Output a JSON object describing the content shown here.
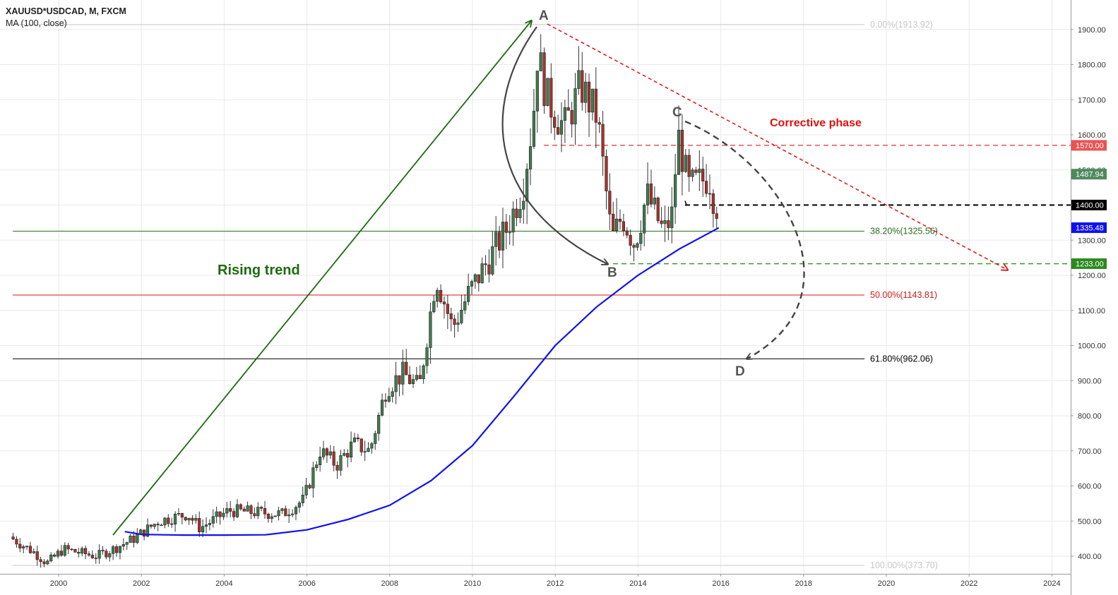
{
  "header": {
    "symbol_line": "XAUUSD*USDCAD, M, FXCM",
    "indicator_line": "MA (100, close)"
  },
  "colors": {
    "up": "#3f7c4f",
    "down": "#a8322b",
    "ma": "#1010ee",
    "grid": "#eaeaea",
    "green_line": "#1e6b10",
    "red_line": "#e01010",
    "price_badge": "#4d8a5c"
  },
  "chart_data": {
    "type": "candlestick",
    "title": "XAUUSD*USDCAD, M, FXCM",
    "x_ticks": [
      "2000",
      "2002",
      "2004",
      "2006",
      "2008",
      "2010",
      "2012",
      "2014",
      "2016",
      "2018",
      "2020",
      "2022",
      "2024"
    ],
    "y_ticks": [
      "400.00",
      "500.00",
      "600.00",
      "700.00",
      "800.00",
      "900.00",
      "1000.00",
      "1100.00",
      "1200.00",
      "1300.00",
      "1400.00",
      "1500.00",
      "1600.00",
      "1700.00",
      "1800.00",
      "1900.00"
    ],
    "xlim": [
      1998.9,
      2024.8
    ],
    "ylim": [
      366,
      1982
    ],
    "grid": true,
    "price_series_anchors": [
      [
        1998.9,
        455
      ],
      [
        1999.5,
        410
      ],
      [
        1999.8,
        380
      ],
      [
        2000.2,
        420
      ],
      [
        2001.0,
        400
      ],
      [
        2001.4,
        420
      ],
      [
        2001.9,
        450
      ],
      [
        2002.5,
        500
      ],
      [
        2003.2,
        520
      ],
      [
        2003.5,
        480
      ],
      [
        2004.2,
        530
      ],
      [
        2004.8,
        525
      ],
      [
        2005.5,
        520
      ],
      [
        2006.0,
        560
      ],
      [
        2006.4,
        700
      ],
      [
        2006.8,
        660
      ],
      [
        2007.2,
        720
      ],
      [
        2007.6,
        700
      ],
      [
        2008.0,
        880
      ],
      [
        2008.4,
        920
      ],
      [
        2008.8,
        880
      ],
      [
        2009.2,
        1200
      ],
      [
        2009.6,
        1050
      ],
      [
        2010.0,
        1150
      ],
      [
        2010.5,
        1250
      ],
      [
        2010.9,
        1330
      ],
      [
        2011.3,
        1450
      ],
      [
        2011.55,
        1650
      ],
      [
        2011.65,
        1830
      ],
      [
        2011.9,
        1700
      ],
      [
        2012.3,
        1620
      ],
      [
        2012.7,
        1740
      ],
      [
        2013.1,
        1650
      ],
      [
        2013.45,
        1300
      ],
      [
        2013.7,
        1370
      ],
      [
        2014.0,
        1290
      ],
      [
        2014.3,
        1430
      ],
      [
        2014.7,
        1320
      ],
      [
        2014.9,
        1370
      ],
      [
        2015.05,
        1600
      ],
      [
        2015.3,
        1450
      ],
      [
        2015.8,
        1480
      ],
      [
        2015.95,
        1400
      ]
    ],
    "ma100_anchors": [
      [
        2001.6,
        470
      ],
      [
        2002.0,
        462
      ],
      [
        2003.0,
        460
      ],
      [
        2004.0,
        460
      ],
      [
        2005.0,
        461
      ],
      [
        2006.0,
        475
      ],
      [
        2007.0,
        505
      ],
      [
        2008.0,
        545
      ],
      [
        2009.0,
        615
      ],
      [
        2010.0,
        715
      ],
      [
        2011.0,
        855
      ],
      [
        2012.0,
        1000
      ],
      [
        2013.0,
        1110
      ],
      [
        2014.0,
        1200
      ],
      [
        2015.0,
        1275
      ],
      [
        2015.95,
        1335
      ]
    ],
    "fibonacci": [
      {
        "label": "0.00%(1913.92)",
        "value": 1913.92,
        "color": "#c8c8c8"
      },
      {
        "label": "38.20%(1325.56)",
        "value": 1325.56,
        "color": "#2a6e1e"
      },
      {
        "label": "50.00%(1143.81)",
        "value": 1143.81,
        "color": "#d01a1a"
      },
      {
        "label": "61.80%(962.06)",
        "value": 962.06,
        "color": "#000000"
      },
      {
        "label": "100.00%(373.70)",
        "value": 373.7,
        "color": "#c8c8c8"
      }
    ],
    "horizontal_levels": [
      {
        "value": 1570,
        "style": "dashed",
        "color": "#e85454"
      },
      {
        "value": 1400,
        "style": "dashed",
        "color": "#000000"
      },
      {
        "value": 1233,
        "style": "dashed",
        "color": "#3a9a2a"
      }
    ],
    "price_badges": [
      {
        "text": "1570.00",
        "value": 1570,
        "color": "#e85454"
      },
      {
        "text": "1487.94",
        "value": 1487.94,
        "color": "#4d8a5c"
      },
      {
        "text": "1400.00",
        "value": 1400,
        "color": "#000000"
      },
      {
        "text": "1335.48",
        "value": 1335.48,
        "color": "#1010ee"
      },
      {
        "text": "1233.00",
        "value": 1233,
        "color": "#2a8a1e"
      }
    ],
    "annotations": {
      "point_A": "A",
      "point_B": "B",
      "point_C": "C",
      "point_D": "D",
      "rising_trend": "Rising trend",
      "corrective_phase": "Corrective phase"
    }
  }
}
